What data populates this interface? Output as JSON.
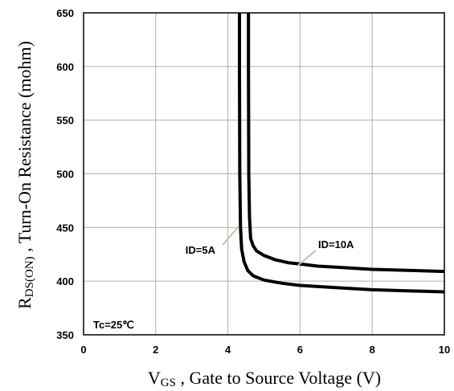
{
  "chart_data": {
    "type": "line",
    "xlabel": {
      "main": "V",
      "sub": "GS",
      "rest": " , Gate to Source Voltage (V)"
    },
    "ylabel": {
      "main": "R",
      "sub": "DS(ON)",
      "rest": " , Turn-On Resistance (mohm)"
    },
    "xlim": [
      0,
      10
    ],
    "ylim": [
      350,
      650
    ],
    "xticks": [
      "0",
      "2",
      "4",
      "6",
      "8",
      "10"
    ],
    "yticks": [
      "350",
      "400",
      "450",
      "500",
      "550",
      "600",
      "650"
    ],
    "grid": true,
    "condition_label": "Tc=25℃",
    "series": [
      {
        "name": "ID=5A",
        "x": [
          4.32,
          4.32,
          4.33,
          4.35,
          4.38,
          4.45,
          4.55,
          4.7,
          5.0,
          5.5,
          6.0,
          6.5,
          7.0,
          8.0,
          9.0,
          10.0
        ],
        "y": [
          650,
          600,
          500,
          450,
          430,
          418,
          410,
          405,
          401,
          398,
          396,
          395,
          394,
          392,
          391,
          390
        ]
      },
      {
        "name": "ID=10A",
        "x": [
          4.57,
          4.57,
          4.58,
          4.6,
          4.63,
          4.7,
          4.8,
          5.0,
          5.3,
          5.7,
          6.0,
          6.5,
          7.0,
          8.0,
          9.0,
          10.0
        ],
        "y": [
          650,
          600,
          500,
          460,
          440,
          433,
          428,
          424,
          420,
          417,
          416,
          414,
          413,
          411,
          410,
          409
        ]
      }
    ],
    "annotations": [
      {
        "text": "ID=5A",
        "series": "ID=5A",
        "point": [
          4.3,
          451
        ]
      },
      {
        "text": "ID=10A",
        "series": "ID=10A",
        "point": [
          5.95,
          415
        ]
      }
    ]
  }
}
